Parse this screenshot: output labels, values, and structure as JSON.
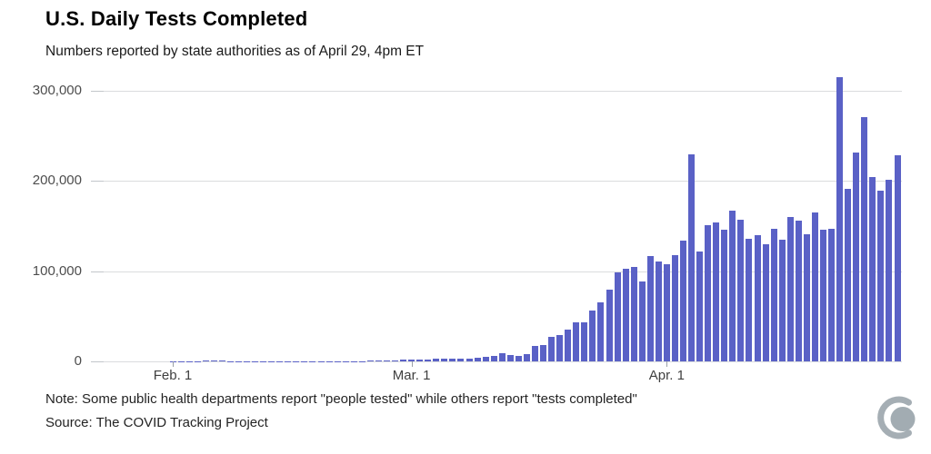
{
  "header": {
    "title": "U.S. Daily Tests Completed",
    "subtitle": "Numbers reported by state authorities as of April 29, 4pm ET"
  },
  "footer": {
    "note": "Note: Some public health departments report \"people tested\" while others report \"tests completed\"",
    "source": "Source: The COVID Tracking Project"
  },
  "logo": {
    "name": "covid-tracking-project-logo",
    "color": "#a5aeb4"
  },
  "colors": {
    "bar": "#5a61c6",
    "gridline": "#dadcde",
    "axis_text": "#4d4d4d"
  },
  "chart_data": {
    "type": "bar",
    "title": "U.S. Daily Tests Completed",
    "subtitle": "Numbers reported by state authorities as of April 29, 4pm ET",
    "x_unit": "day",
    "x_start": "Feb 1",
    "x_end": "Apr 29",
    "x_tick_labels": [
      "Feb. 1",
      "Mar. 1",
      "Apr. 1"
    ],
    "x_tick_day_indices": [
      0,
      29,
      60
    ],
    "ylim": [
      0,
      300000
    ],
    "y_ticks": [
      0,
      100000,
      200000,
      300000
    ],
    "y_tick_labels": [
      "0",
      "100,000",
      "200,000",
      "300,000"
    ],
    "grid": true,
    "legend": false,
    "ylabel": "",
    "xlabel": "",
    "values": [
      300,
      300,
      400,
      500,
      800,
      1400,
      1200,
      400,
      300,
      300,
      300,
      300,
      300,
      300,
      300,
      300,
      300,
      300,
      300,
      300,
      400,
      400,
      400,
      500,
      800,
      1000,
      1200,
      1400,
      1600,
      1900,
      2100,
      2400,
      2700,
      3000,
      3200,
      3400,
      3300,
      4000,
      5000,
      6000,
      9000,
      7500,
      6500,
      8500,
      17000,
      18000,
      27000,
      29000,
      35000,
      43000,
      43500,
      56000,
      65500,
      80000,
      98500,
      102500,
      104500,
      88500,
      117000,
      111000,
      107500,
      117500,
      133500,
      230000,
      122000,
      151500,
      154500,
      146000,
      167500,
      157000,
      136000,
      140000,
      130000,
      147000,
      135000,
      160500,
      156500,
      141000,
      165000,
      146000,
      146500,
      315000,
      191000,
      231500,
      270500,
      204500,
      189500,
      201000,
      228500
    ]
  }
}
